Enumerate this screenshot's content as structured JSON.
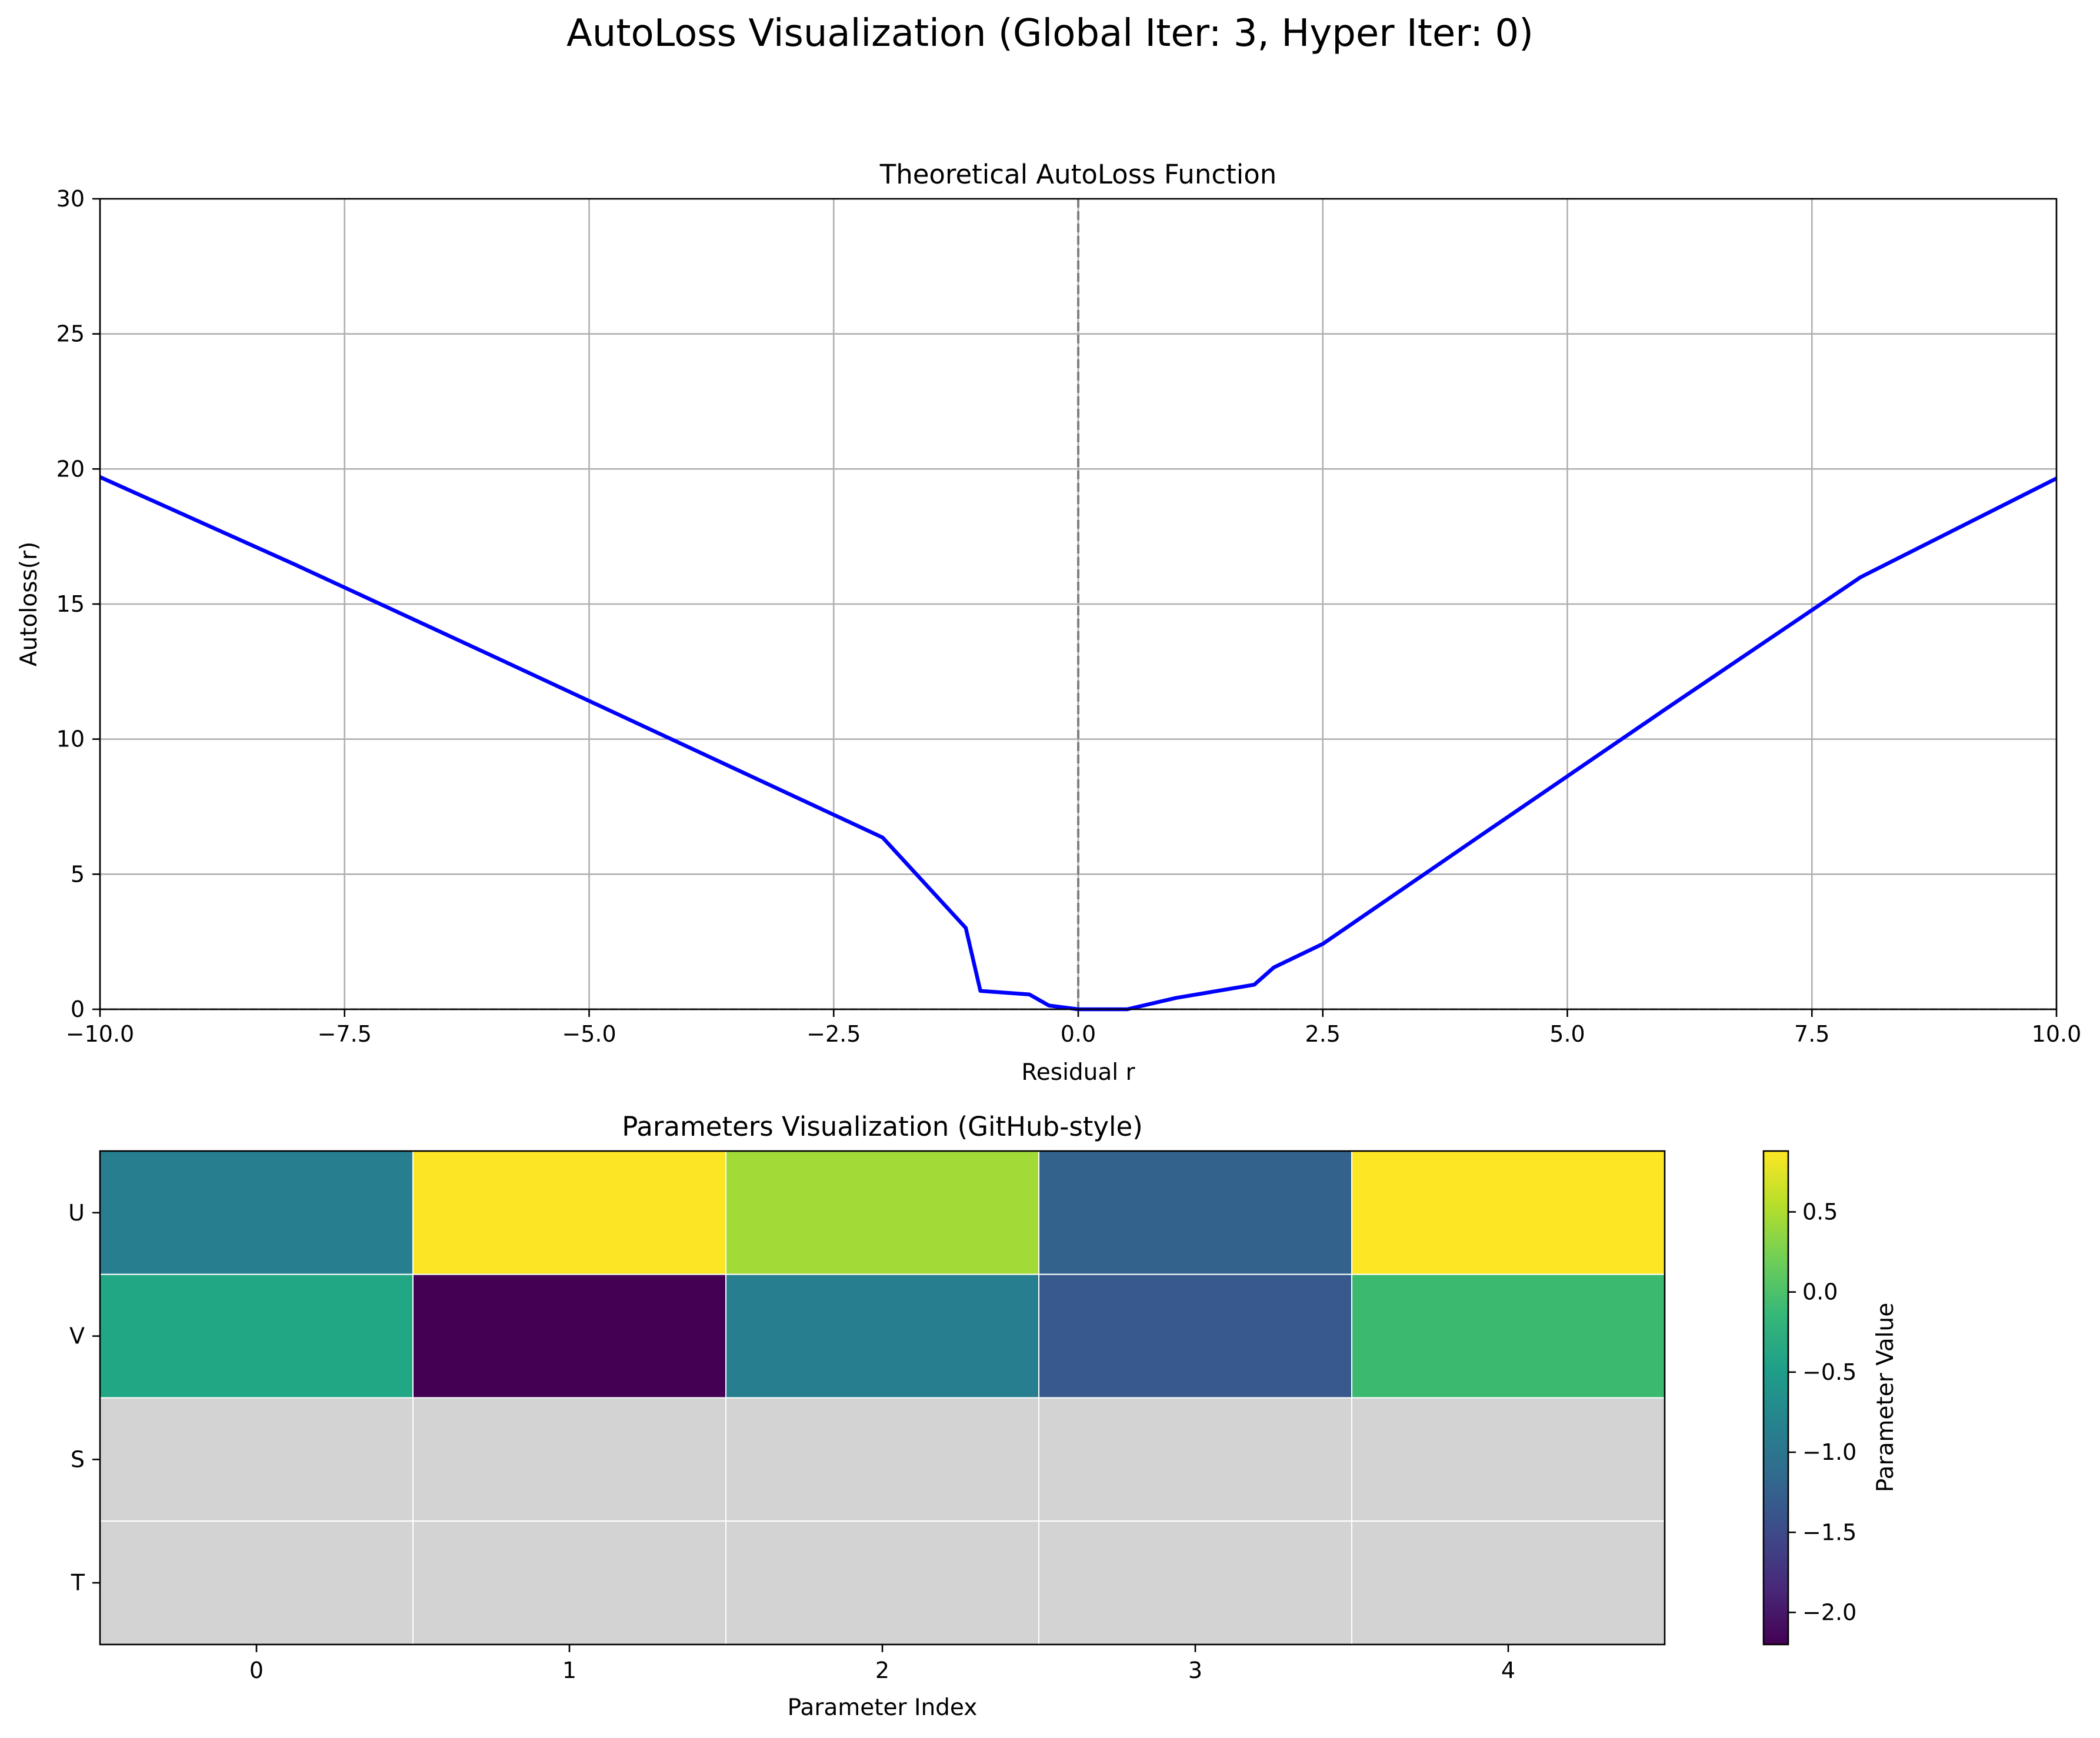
{
  "figure": {
    "suptitle": "AutoLoss Visualization (Global Iter: 3, Hyper Iter: 0)"
  },
  "chart_data": [
    {
      "type": "line",
      "title": "Theoretical AutoLoss Function",
      "xlabel": "Residual r",
      "ylabel": "Autoloss(r)",
      "xlim": [
        -10,
        10
      ],
      "ylim": [
        0,
        30
      ],
      "xticks": [
        "−10.0",
        "−7.5",
        "−5.0",
        "−2.5",
        "0.0",
        "2.5",
        "5.0",
        "7.5",
        "10.0"
      ],
      "xtick_values": [
        -10,
        -7.5,
        -5,
        -2.5,
        0,
        2.5,
        5,
        7.5,
        10
      ],
      "yticks": [
        "0",
        "5",
        "10",
        "15",
        "20",
        "25",
        "30"
      ],
      "ytick_values": [
        0,
        5,
        10,
        15,
        20,
        25,
        30
      ],
      "grid": true,
      "series": [
        {
          "color": "#0000ff",
          "x": [
            -10,
            -8,
            -6,
            -4,
            -2,
            -1.15,
            -1.0,
            -0.5,
            -0.3,
            0.0,
            0.1,
            0.5,
            1.0,
            1.8,
            2.0,
            2.5,
            4,
            6,
            8,
            10
          ],
          "y": [
            19.7,
            16.45,
            13.1,
            9.73,
            6.36,
            3.01,
            0.68,
            0.55,
            0.14,
            0.0,
            0.0,
            0.0,
            0.42,
            0.91,
            1.55,
            2.42,
            6.15,
            11.1,
            16.0,
            19.65
          ]
        }
      ],
      "vline": {
        "x": 0,
        "style": "dashed",
        "color": "#808080"
      },
      "hline": {
        "y": 0,
        "style": "dashed",
        "color": "#000000"
      }
    },
    {
      "type": "heatmap",
      "title": "Parameters Visualization (GitHub-style)",
      "xlabel": "Parameter Index",
      "rows": [
        "U",
        "V",
        "S",
        "T"
      ],
      "columns": [
        "0",
        "1",
        "2",
        "3",
        "4"
      ],
      "values": [
        [
          -0.75,
          0.88,
          0.45,
          -1.25,
          0.88
        ],
        [
          -0.05,
          -2.2,
          -0.75,
          -1.45,
          0.15
        ],
        [
          null,
          null,
          null,
          null,
          null
        ],
        [
          null,
          null,
          null,
          null,
          null
        ]
      ],
      "missing_color": "#d3d3d3",
      "cell_colors": [
        [
          "#277e8e",
          "#fbe524",
          "#a2da37",
          "#33638d",
          "#fde725"
        ],
        [
          "#22a785",
          "#440154",
          "#277e8e",
          "#38598c",
          "#3bb96f"
        ],
        [
          "#d3d3d3",
          "#d3d3d3",
          "#d3d3d3",
          "#d3d3d3",
          "#d3d3d3"
        ],
        [
          "#d3d3d3",
          "#d3d3d3",
          "#d3d3d3",
          "#d3d3d3",
          "#d3d3d3"
        ]
      ],
      "colorbar": {
        "label": "Parameter Value",
        "min": -2.2,
        "max": 0.88,
        "ticks": [
          "−2.0",
          "−1.5",
          "−1.0",
          "−0.5",
          "0.0",
          "0.5"
        ],
        "tick_values": [
          -2.0,
          -1.5,
          -1.0,
          -0.5,
          0.0,
          0.5
        ],
        "colormap": "viridis",
        "colormap_stops": [
          "#440154",
          "#482878",
          "#3e4989",
          "#31688e",
          "#26828e",
          "#1f9e89",
          "#35b779",
          "#6ece58",
          "#b5de2b",
          "#fde725"
        ]
      }
    }
  ]
}
